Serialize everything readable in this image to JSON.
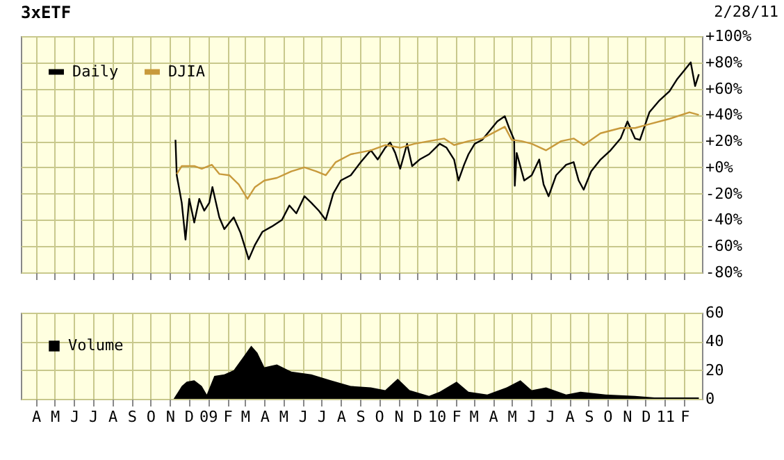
{
  "chart_data": [
    {
      "type": "line",
      "title": "3xETF",
      "annotations": [
        "2/28/11"
      ],
      "xlim": [
        "2008-03-08",
        "2011-03-01"
      ],
      "xticks": [
        {
          "value": "2008-04-01",
          "label": null
        },
        {
          "value": "2008-05-01",
          "label": null
        },
        {
          "value": "2008-06-01",
          "label": null
        },
        {
          "value": "2008-07-01",
          "label": null
        },
        {
          "value": "2008-08-01",
          "label": null
        },
        {
          "value": "2008-09-01",
          "label": null
        },
        {
          "value": "2008-10-01",
          "label": null
        },
        {
          "value": "2008-11-01",
          "label": null
        },
        {
          "value": "2008-12-01",
          "label": null
        },
        {
          "value": "2009-01-01",
          "label": null
        },
        {
          "value": "2009-02-01",
          "label": null
        },
        {
          "value": "2009-03-01",
          "label": null
        },
        {
          "value": "2009-04-01",
          "label": null
        },
        {
          "value": "2009-05-01",
          "label": null
        },
        {
          "value": "2009-06-01",
          "label": null
        },
        {
          "value": "2009-07-01",
          "label": null
        },
        {
          "value": "2009-08-01",
          "label": null
        },
        {
          "value": "2009-09-01",
          "label": null
        },
        {
          "value": "2009-10-01",
          "label": null
        },
        {
          "value": "2009-11-01",
          "label": null
        },
        {
          "value": "2009-12-01",
          "label": null
        },
        {
          "value": "2010-01-01",
          "label": null
        },
        {
          "value": "2010-02-01",
          "label": null
        },
        {
          "value": "2010-03-01",
          "label": null
        },
        {
          "value": "2010-04-01",
          "label": null
        },
        {
          "value": "2010-05-01",
          "label": null
        },
        {
          "value": "2010-06-01",
          "label": null
        },
        {
          "value": "2010-07-01",
          "label": null
        },
        {
          "value": "2010-08-01",
          "label": null
        },
        {
          "value": "2010-09-01",
          "label": null
        },
        {
          "value": "2010-10-01",
          "label": null
        },
        {
          "value": "2010-11-01",
          "label": null
        },
        {
          "value": "2010-12-01",
          "label": null
        },
        {
          "value": "2011-01-01",
          "label": null
        },
        {
          "value": "2011-02-01",
          "label": null
        }
      ],
      "ylim": [
        -80,
        100
      ],
      "yticks": [
        {
          "value": -80,
          "label": "-80%"
        },
        {
          "value": -60,
          "label": "-60%"
        },
        {
          "value": -40,
          "label": "-40%"
        },
        {
          "value": -20,
          "label": "-20%"
        },
        {
          "value": 0,
          "label": "+0%"
        },
        {
          "value": 20,
          "label": "+20%"
        },
        {
          "value": 40,
          "label": "+40%"
        },
        {
          "value": 60,
          "label": "+60%"
        },
        {
          "value": 80,
          "label": "+80%"
        },
        {
          "value": 100,
          "label": "+100%"
        }
      ],
      "tick_labels": "y",
      "grid": true,
      "legend": "top left",
      "series": [
        {
          "name": "Daily",
          "color": "#000000",
          "x": [
            "2008-11-10",
            "2008-11-12",
            "2008-11-20",
            "2008-11-26",
            "2008-12-02",
            "2008-12-10",
            "2008-12-18",
            "2008-12-26",
            "2009-01-03",
            "2009-01-08",
            "2009-01-19",
            "2009-01-27",
            "2009-02-11",
            "2009-02-22",
            "2009-03-07",
            "2009-03-17",
            "2009-03-29",
            "2009-04-13",
            "2009-04-29",
            "2009-05-11",
            "2009-05-22",
            "2009-06-04",
            "2009-06-15",
            "2009-06-27",
            "2009-07-08",
            "2009-07-20",
            "2009-08-01",
            "2009-08-17",
            "2009-09-02",
            "2009-09-18",
            "2009-09-29",
            "2009-10-11",
            "2009-10-19",
            "2009-10-27",
            "2009-11-04",
            "2009-11-15",
            "2009-11-23",
            "2009-12-05",
            "2009-12-20",
            "2010-01-06",
            "2010-01-17",
            "2010-01-29",
            "2010-02-05",
            "2010-02-14",
            "2010-02-21",
            "2010-03-03",
            "2010-03-15",
            "2010-04-08",
            "2010-04-20",
            "2010-04-27",
            "2010-05-05",
            "2010-05-06",
            "2010-05-09",
            "2010-05-21",
            "2010-06-02",
            "2010-06-14",
            "2010-06-21",
            "2010-06-29",
            "2010-07-11",
            "2010-07-27",
            "2010-08-08",
            "2010-08-16",
            "2010-08-24",
            "2010-09-05",
            "2010-09-20",
            "2010-10-06",
            "2010-10-22",
            "2010-11-02",
            "2010-11-14",
            "2010-11-22",
            "2010-12-07",
            "2010-12-23",
            "2011-01-08",
            "2011-01-20",
            "2011-02-01",
            "2011-02-11",
            "2011-02-18",
            "2011-02-24"
          ],
          "values": [
            21,
            -6,
            -27,
            -55,
            -24,
            -42,
            -24,
            -33,
            -27,
            -15,
            -38,
            -47,
            -38,
            -50,
            -70,
            -59,
            -49,
            -45,
            -40,
            -29,
            -35,
            -22,
            -27,
            -33,
            -40,
            -20,
            -10,
            -6,
            4,
            13,
            6,
            15,
            19,
            11,
            -1,
            18,
            1,
            6,
            10,
            18,
            15,
            6,
            -10,
            2,
            10,
            18,
            21,
            35,
            39,
            30,
            21,
            -14,
            11,
            -10,
            -6,
            6,
            -13,
            -22,
            -6,
            2,
            4,
            -10,
            -17,
            -3,
            6,
            13,
            22,
            35,
            22,
            21,
            42,
            51,
            58,
            67,
            74,
            80,
            62,
            71
          ]
        },
        {
          "name": "DJIA",
          "color": "#c89a3c",
          "x": [
            "2008-11-12",
            "2008-11-20",
            "2008-12-10",
            "2008-12-22",
            "2009-01-07",
            "2009-01-19",
            "2009-02-04",
            "2009-02-19",
            "2009-03-05",
            "2009-03-17",
            "2009-04-01",
            "2009-04-21",
            "2009-05-14",
            "2009-06-04",
            "2009-06-23",
            "2009-07-08",
            "2009-07-24",
            "2009-08-17",
            "2009-09-18",
            "2009-10-11",
            "2009-11-04",
            "2009-11-27",
            "2009-12-20",
            "2010-01-13",
            "2010-01-29",
            "2010-02-21",
            "2010-03-15",
            "2010-04-20",
            "2010-05-01",
            "2010-05-17",
            "2010-06-02",
            "2010-06-25",
            "2010-07-19",
            "2010-08-08",
            "2010-08-24",
            "2010-09-20",
            "2010-10-22",
            "2010-11-14",
            "2010-12-07",
            "2011-01-08",
            "2011-02-09",
            "2011-02-24"
          ],
          "values": [
            -5,
            1,
            1,
            -1,
            2,
            -5,
            -6,
            -13,
            -24,
            -15,
            -10,
            -8,
            -3,
            0,
            -3,
            -6,
            4,
            10,
            13,
            17,
            15,
            18,
            20,
            22,
            17,
            20,
            22,
            31,
            21,
            20,
            18,
            13,
            20,
            22,
            17,
            26,
            30,
            30,
            33,
            37,
            42,
            40
          ]
        }
      ]
    },
    {
      "type": "area",
      "xlim": [
        "2008-03-08",
        "2011-03-01"
      ],
      "xticks": [
        {
          "value": "2008-04-01",
          "label": "A"
        },
        {
          "value": "2008-05-01",
          "label": "M"
        },
        {
          "value": "2008-06-01",
          "label": "J"
        },
        {
          "value": "2008-07-01",
          "label": "J"
        },
        {
          "value": "2008-08-01",
          "label": "A"
        },
        {
          "value": "2008-09-01",
          "label": "S"
        },
        {
          "value": "2008-10-01",
          "label": "O"
        },
        {
          "value": "2008-11-01",
          "label": "N"
        },
        {
          "value": "2008-12-01",
          "label": "D"
        },
        {
          "value": "2009-01-01",
          "label": "09"
        },
        {
          "value": "2009-02-01",
          "label": "F"
        },
        {
          "value": "2009-03-01",
          "label": "M"
        },
        {
          "value": "2009-04-01",
          "label": "A"
        },
        {
          "value": "2009-05-01",
          "label": "M"
        },
        {
          "value": "2009-06-01",
          "label": "J"
        },
        {
          "value": "2009-07-01",
          "label": "J"
        },
        {
          "value": "2009-08-01",
          "label": "A"
        },
        {
          "value": "2009-09-01",
          "label": "S"
        },
        {
          "value": "2009-10-01",
          "label": "O"
        },
        {
          "value": "2009-11-01",
          "label": "N"
        },
        {
          "value": "2009-12-01",
          "label": "D"
        },
        {
          "value": "2010-01-01",
          "label": "10"
        },
        {
          "value": "2010-02-01",
          "label": "F"
        },
        {
          "value": "2010-03-01",
          "label": "M"
        },
        {
          "value": "2010-04-01",
          "label": "A"
        },
        {
          "value": "2010-05-01",
          "label": "M"
        },
        {
          "value": "2010-06-01",
          "label": "J"
        },
        {
          "value": "2010-07-01",
          "label": "J"
        },
        {
          "value": "2010-08-01",
          "label": "A"
        },
        {
          "value": "2010-09-01",
          "label": "S"
        },
        {
          "value": "2010-10-01",
          "label": "O"
        },
        {
          "value": "2010-11-01",
          "label": "N"
        },
        {
          "value": "2010-12-01",
          "label": "D"
        },
        {
          "value": "2011-01-01",
          "label": "11"
        },
        {
          "value": "2011-02-01",
          "label": "F"
        }
      ],
      "ylim": [
        0,
        60
      ],
      "yticks": [
        0,
        20,
        40,
        60
      ],
      "grid": true,
      "legend": "top left",
      "series": [
        {
          "name": "Volume",
          "color": "#000000",
          "x": [
            "2008-11-07",
            "2008-11-10",
            "2008-11-20",
            "2008-11-28",
            "2008-12-10",
            "2008-12-22",
            "2008-12-30",
            "2009-01-11",
            "2009-01-27",
            "2009-02-11",
            "2009-02-26",
            "2009-03-11",
            "2009-03-21",
            "2009-04-01",
            "2009-04-21",
            "2009-05-14",
            "2009-06-15",
            "2009-07-16",
            "2009-08-17",
            "2009-09-18",
            "2009-10-11",
            "2009-10-31",
            "2009-11-19",
            "2009-12-20",
            "2010-01-06",
            "2010-02-02",
            "2010-02-21",
            "2010-03-23",
            "2010-04-23",
            "2010-05-15",
            "2010-06-02",
            "2010-06-25",
            "2010-07-27",
            "2010-08-19",
            "2010-09-28",
            "2010-11-14",
            "2010-12-15",
            "2011-02-01",
            "2011-02-24"
          ],
          "values": [
            0,
            2,
            9,
            12,
            13,
            9,
            3,
            16,
            17,
            20,
            29,
            37,
            32,
            22,
            24,
            19,
            17,
            13,
            9,
            8,
            6,
            14,
            6,
            2,
            5,
            12,
            5,
            3,
            8,
            13,
            6,
            8,
            3,
            5,
            3,
            2,
            1,
            1,
            1
          ]
        }
      ]
    }
  ]
}
